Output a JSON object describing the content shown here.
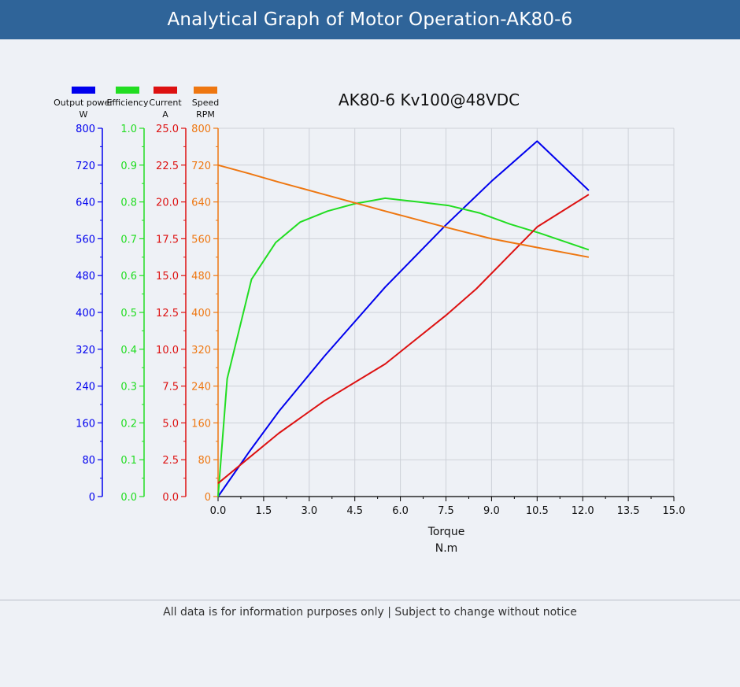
{
  "header": {
    "title": "Analytical Graph of Motor Operation-AK80-6"
  },
  "footer": {
    "note": "All data is for information purposes only | Subject to change without notice"
  },
  "chart_data": {
    "type": "line",
    "title": "AK80-6 Kv100@48VDC",
    "xlabel": "Torque",
    "xunit": "N.m",
    "xlim": [
      0,
      15
    ],
    "xticks": [
      "0.0",
      "1.5",
      "3.0",
      "4.5",
      "6.0",
      "7.5",
      "9.0",
      "10.5",
      "12.0",
      "13.5",
      "15.0"
    ],
    "grid": true,
    "legend_position": "top-left",
    "axes": [
      {
        "name": "Output power",
        "unit": "W",
        "color": "#0000ee",
        "ylim": [
          0,
          800
        ],
        "ticks": [
          "0",
          "80",
          "160",
          "240",
          "320",
          "400",
          "480",
          "560",
          "640",
          "720",
          "800"
        ]
      },
      {
        "name": "Efficiency",
        "unit": "",
        "color": "#22dd22",
        "ylim": [
          0,
          1.0
        ],
        "ticks": [
          "0.0",
          "0.1",
          "0.2",
          "0.3",
          "0.4",
          "0.5",
          "0.6",
          "0.7",
          "0.8",
          "0.9",
          "1.0"
        ]
      },
      {
        "name": "Current",
        "unit": "A",
        "color": "#dd1111",
        "ylim": [
          0,
          25
        ],
        "ticks": [
          "0.0",
          "2.5",
          "5.0",
          "7.5",
          "10.0",
          "12.5",
          "15.0",
          "17.5",
          "20.0",
          "22.5",
          "25.0"
        ]
      },
      {
        "name": "Speed",
        "unit": "RPM",
        "color": "#ee7711",
        "ylim": [
          0,
          800
        ],
        "ticks": [
          "0",
          "80",
          "160",
          "240",
          "320",
          "400",
          "480",
          "560",
          "640",
          "720",
          "800"
        ]
      }
    ],
    "series": [
      {
        "name": "Output power",
        "axis": 0,
        "color": "#0000ee",
        "x": [
          0,
          1.0,
          2.0,
          3.5,
          5.5,
          7.5,
          9.0,
          10.5,
          12.2
        ],
        "y": [
          0,
          95,
          185,
          305,
          455,
          590,
          685,
          772,
          665
        ]
      },
      {
        "name": "Efficiency",
        "axis": 1,
        "color": "#22dd22",
        "x": [
          0,
          0.3,
          1.1,
          1.9,
          2.7,
          3.6,
          4.5,
          5.5,
          6.6,
          7.6,
          8.6,
          9.6,
          10.6,
          12.2
        ],
        "y": [
          0,
          0.32,
          0.59,
          0.69,
          0.745,
          0.775,
          0.795,
          0.81,
          0.8,
          0.79,
          0.77,
          0.74,
          0.715,
          0.67
        ]
      },
      {
        "name": "Current",
        "axis": 2,
        "color": "#dd1111",
        "x": [
          0,
          1.0,
          2.0,
          3.5,
          5.5,
          7.5,
          8.5,
          9.5,
          10.5,
          12.2
        ],
        "y": [
          0.9,
          2.6,
          4.3,
          6.5,
          9.0,
          12.3,
          14.1,
          16.2,
          18.3,
          20.5
        ]
      },
      {
        "name": "Speed",
        "axis": 3,
        "color": "#ee7711",
        "x": [
          0,
          1.0,
          2.0,
          3.5,
          5.5,
          7.5,
          9.0,
          10.5,
          12.2
        ],
        "y": [
          720,
          702,
          683,
          656,
          620,
          585,
          560,
          541,
          520
        ]
      }
    ]
  }
}
